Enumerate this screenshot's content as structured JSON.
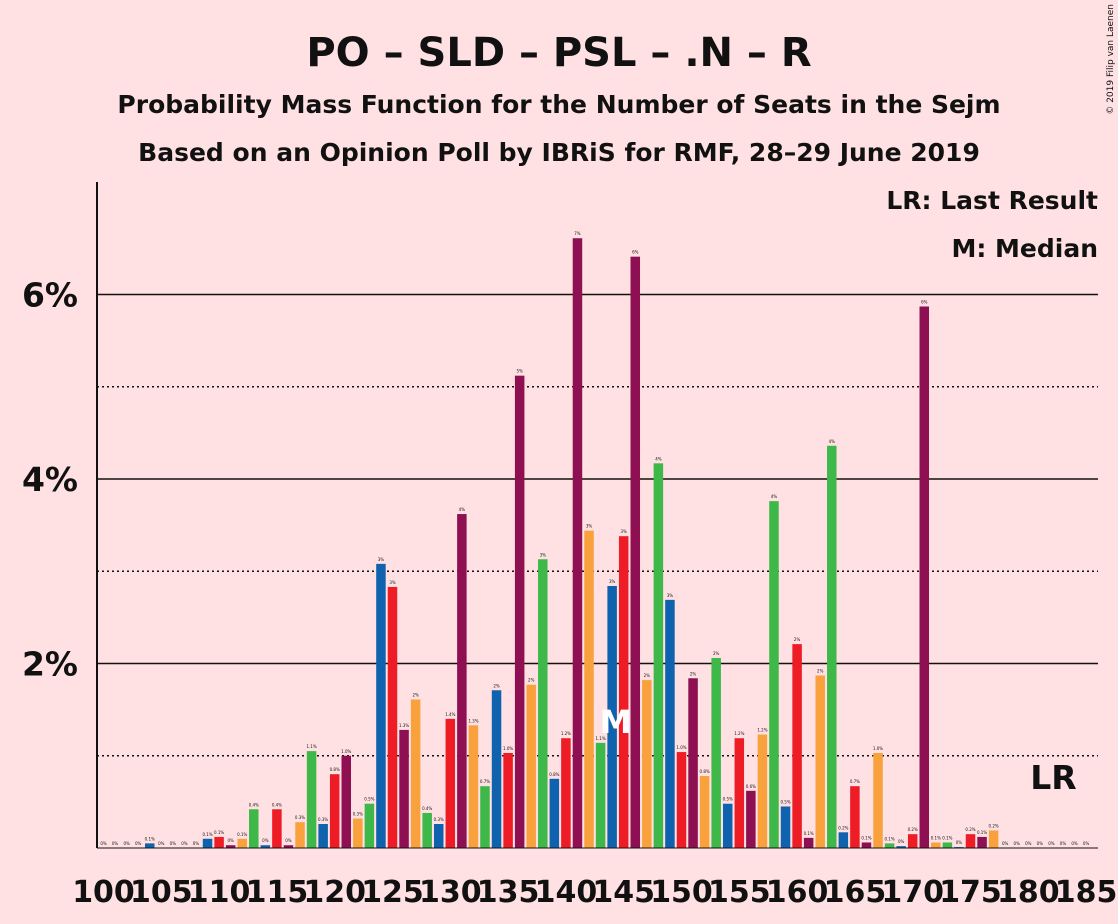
{
  "title": "PO – SLD – PSL – .N – R",
  "subtitle1": "Probability Mass Function for the Number of Seats in the Sejm",
  "subtitle2": "Based on an Opinion Poll by IBRiS for RMF, 28–29 June 2019",
  "legend": {
    "lr": "LR: Last Result",
    "m": "M: Median"
  },
  "copyright": "© 2019 Filip van Laenen",
  "colors": {
    "background": "#FFE1E3",
    "red": "#EE1C25",
    "purple": "#8E0F52",
    "orange": "#F9A23D",
    "green": "#3DB849",
    "blue": "#0F62AD"
  },
  "chart_data": {
    "type": "bar",
    "xlabel": "",
    "ylabel": "",
    "xlim": [
      100,
      185
    ],
    "ylim": [
      0,
      7.2
    ],
    "y_ticks": [
      {
        "value": 2,
        "label": "2%"
      },
      {
        "value": 4,
        "label": "4%"
      },
      {
        "value": 6,
        "label": "6%"
      }
    ],
    "y_dotted": [
      1,
      3,
      5
    ],
    "x_ticks": [
      "100",
      "105",
      "110",
      "115",
      "120",
      "125",
      "130",
      "135",
      "140",
      "145",
      "150",
      "155",
      "160",
      "165",
      "170",
      "175",
      "180",
      "185"
    ],
    "median_seat": 145,
    "median_label": "M",
    "last_result_seat": 182,
    "last_result_label": "LR",
    "bars": [
      {
        "seat": 100,
        "value": 0.0,
        "label": "0%"
      },
      {
        "seat": 101,
        "value": 0.0,
        "label": "0%"
      },
      {
        "seat": 102,
        "value": 0.0,
        "label": "0%"
      },
      {
        "seat": 103,
        "value": 0.0,
        "label": "0%"
      },
      {
        "seat": 104,
        "value": 0.05,
        "label": "0.1%"
      },
      {
        "seat": 105,
        "value": 0.0,
        "label": "0%"
      },
      {
        "seat": 106,
        "value": 0.0,
        "label": "0%"
      },
      {
        "seat": 107,
        "value": 0.0,
        "label": "0%"
      },
      {
        "seat": 108,
        "value": 0.0,
        "label": "0%"
      },
      {
        "seat": 109,
        "value": 0.1,
        "label": "0.1%"
      },
      {
        "seat": 110,
        "value": 0.12,
        "label": "0.1%"
      },
      {
        "seat": 111,
        "value": 0.03,
        "label": "0%"
      },
      {
        "seat": 112,
        "value": 0.1,
        "label": "0.1%"
      },
      {
        "seat": 113,
        "value": 0.42,
        "label": "0.4%"
      },
      {
        "seat": 114,
        "value": 0.03,
        "label": "0%"
      },
      {
        "seat": 115,
        "value": 0.42,
        "label": "0.4%"
      },
      {
        "seat": 116,
        "value": 0.03,
        "label": "0%"
      },
      {
        "seat": 117,
        "value": 0.28,
        "label": "0.3%"
      },
      {
        "seat": 118,
        "value": 1.05,
        "label": "1.1%"
      },
      {
        "seat": 119,
        "value": 0.26,
        "label": "0.3%"
      },
      {
        "seat": 120,
        "value": 0.8,
        "label": "0.8%"
      },
      {
        "seat": 121,
        "value": 1.0,
        "label": "1.0%"
      },
      {
        "seat": 122,
        "value": 0.32,
        "label": "0.3%"
      },
      {
        "seat": 123,
        "value": 0.48,
        "label": "0.5%"
      },
      {
        "seat": 124,
        "value": 3.08,
        "label": "3%"
      },
      {
        "seat": 125,
        "value": 2.83,
        "label": "3%"
      },
      {
        "seat": 126,
        "value": 1.28,
        "label": "1.3%"
      },
      {
        "seat": 127,
        "value": 1.61,
        "label": "2%"
      },
      {
        "seat": 128,
        "value": 0.38,
        "label": "0.4%"
      },
      {
        "seat": 129,
        "value": 0.26,
        "label": "0.3%"
      },
      {
        "seat": 130,
        "value": 1.4,
        "label": "1.4%"
      },
      {
        "seat": 131,
        "value": 3.62,
        "label": "4%"
      },
      {
        "seat": 132,
        "value": 1.33,
        "label": "1.3%"
      },
      {
        "seat": 133,
        "value": 0.67,
        "label": "0.7%"
      },
      {
        "seat": 134,
        "value": 1.71,
        "label": "2%"
      },
      {
        "seat": 135,
        "value": 1.03,
        "label": "1.0%"
      },
      {
        "seat": 136,
        "value": 5.12,
        "label": "5%"
      },
      {
        "seat": 137,
        "value": 1.77,
        "label": "2%"
      },
      {
        "seat": 138,
        "value": 3.13,
        "label": "3%"
      },
      {
        "seat": 139,
        "value": 0.75,
        "label": "0.8%"
      },
      {
        "seat": 140,
        "value": 1.19,
        "label": "1.2%"
      },
      {
        "seat": 141,
        "value": 6.61,
        "label": "7%"
      },
      {
        "seat": 142,
        "value": 3.44,
        "label": "3%"
      },
      {
        "seat": 143,
        "value": 1.14,
        "label": "1.1%"
      },
      {
        "seat": 144,
        "value": 2.84,
        "label": "3%"
      },
      {
        "seat": 145,
        "value": 3.38,
        "label": "3%"
      },
      {
        "seat": 146,
        "value": 6.41,
        "label": "6%"
      },
      {
        "seat": 147,
        "value": 1.82,
        "label": "2%"
      },
      {
        "seat": 148,
        "value": 4.17,
        "label": "4%"
      },
      {
        "seat": 149,
        "value": 2.69,
        "label": "3%"
      },
      {
        "seat": 150,
        "value": 1.04,
        "label": "1.0%"
      },
      {
        "seat": 151,
        "value": 1.84,
        "label": "2%"
      },
      {
        "seat": 152,
        "value": 0.78,
        "label": "0.8%"
      },
      {
        "seat": 153,
        "value": 2.06,
        "label": "2%"
      },
      {
        "seat": 154,
        "value": 0.48,
        "label": "0.5%"
      },
      {
        "seat": 155,
        "value": 1.19,
        "label": "1.2%"
      },
      {
        "seat": 156,
        "value": 0.62,
        "label": "0.6%"
      },
      {
        "seat": 157,
        "value": 1.23,
        "label": "1.2%"
      },
      {
        "seat": 158,
        "value": 3.76,
        "label": "4%"
      },
      {
        "seat": 159,
        "value": 0.45,
        "label": "0.5%"
      },
      {
        "seat": 160,
        "value": 2.21,
        "label": "2%"
      },
      {
        "seat": 161,
        "value": 0.11,
        "label": "0.1%"
      },
      {
        "seat": 162,
        "value": 1.87,
        "label": "2%"
      },
      {
        "seat": 163,
        "value": 4.36,
        "label": "4%"
      },
      {
        "seat": 164,
        "value": 0.17,
        "label": "0.2%"
      },
      {
        "seat": 165,
        "value": 0.67,
        "label": "0.7%"
      },
      {
        "seat": 166,
        "value": 0.06,
        "label": "0.1%"
      },
      {
        "seat": 167,
        "value": 1.03,
        "label": "1.0%"
      },
      {
        "seat": 168,
        "value": 0.05,
        "label": "0.1%"
      },
      {
        "seat": 169,
        "value": 0.02,
        "label": "0%"
      },
      {
        "seat": 170,
        "value": 0.15,
        "label": "0.2%"
      },
      {
        "seat": 171,
        "value": 5.87,
        "label": "6%"
      },
      {
        "seat": 172,
        "value": 0.06,
        "label": "0.1%"
      },
      {
        "seat": 173,
        "value": 0.06,
        "label": "0.1%"
      },
      {
        "seat": 174,
        "value": 0.01,
        "label": "0%"
      },
      {
        "seat": 175,
        "value": 0.15,
        "label": "0.2%"
      },
      {
        "seat": 176,
        "value": 0.12,
        "label": "0.1%"
      },
      {
        "seat": 177,
        "value": 0.19,
        "label": "0.2%"
      },
      {
        "seat": 178,
        "value": 0.0,
        "label": "0%"
      },
      {
        "seat": 179,
        "value": 0.0,
        "label": "0%"
      },
      {
        "seat": 180,
        "value": 0.0,
        "label": "0%"
      },
      {
        "seat": 181,
        "value": 0.0,
        "label": "0%"
      },
      {
        "seat": 182,
        "value": 0.0,
        "label": "0%"
      },
      {
        "seat": 183,
        "value": 0.0,
        "label": "0%"
      },
      {
        "seat": 184,
        "value": 0.0,
        "label": "0%"
      },
      {
        "seat": 185,
        "value": 0.0,
        "label": "0%"
      }
    ]
  }
}
